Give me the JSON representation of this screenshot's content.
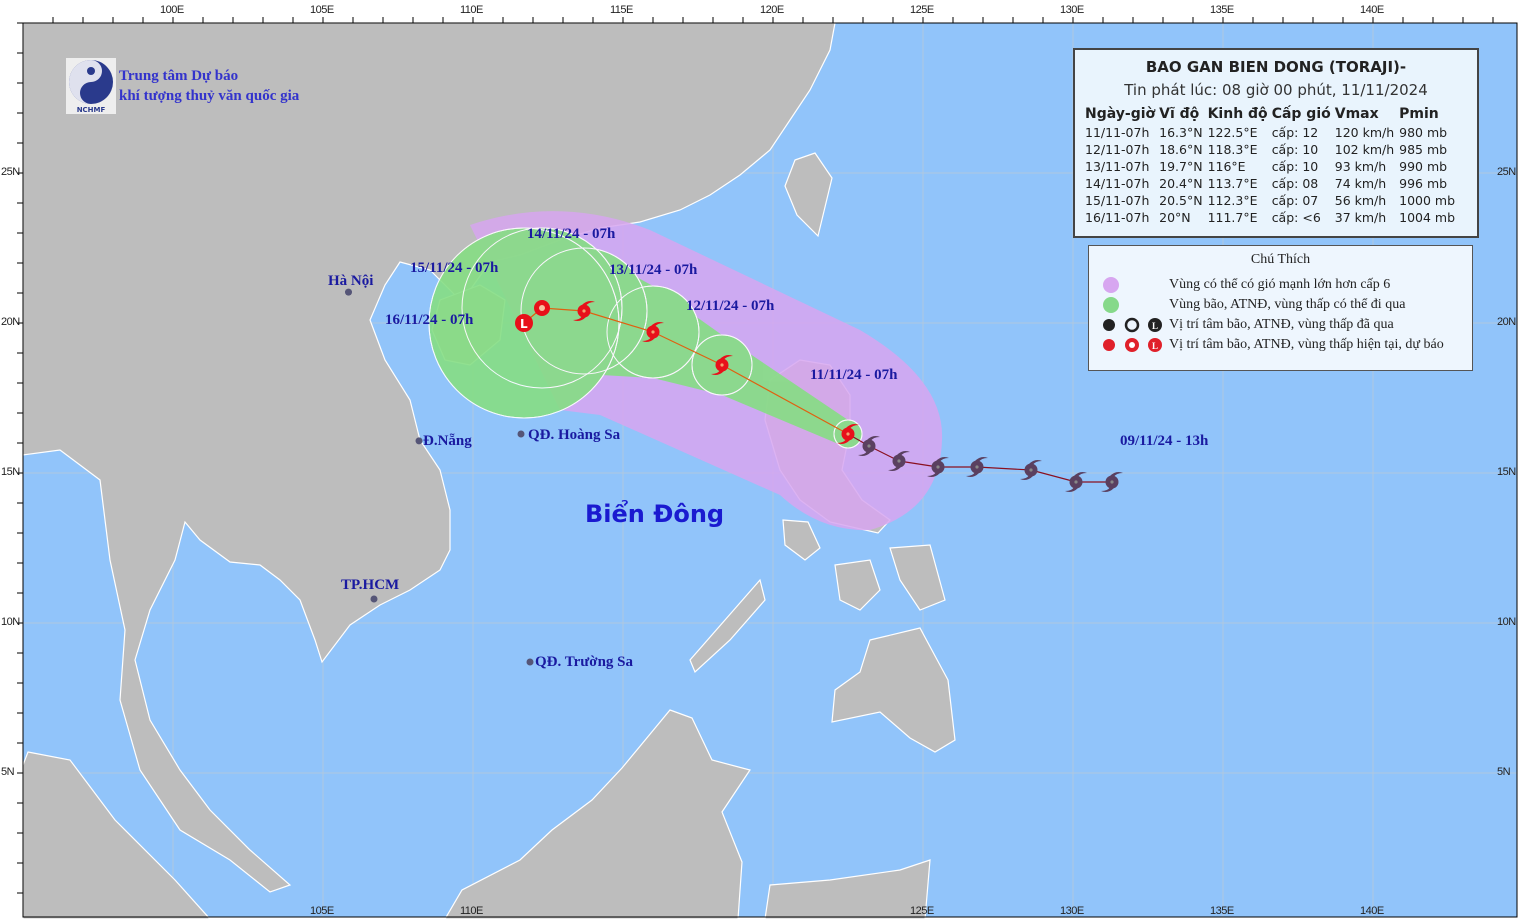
{
  "header": {
    "org_line1": "Trung tâm Dự báo",
    "org_line2": "khí tượng thuỷ văn quốc gia",
    "logo_text": "NCHMF"
  },
  "info": {
    "title": "BAO GAN BIEN DONG (TORAJI)-",
    "issued": "Tin phát lúc: 08 giờ 00 phút, 11/11/2024",
    "columns": [
      "Ngày-giờ",
      "Vĩ độ",
      "Kinh độ",
      "Cấp gió",
      "Vmax",
      "Pmin"
    ],
    "rows": [
      [
        "11/11-07h",
        "16.3°N",
        "122.5°E",
        "cấp: 12",
        "120 km/h",
        "980 mb"
      ],
      [
        "12/11-07h",
        "18.6°N",
        "118.3°E",
        "cấp: 10",
        "102 km/h",
        "985 mb"
      ],
      [
        "13/11-07h",
        "19.7°N",
        "116°E",
        "cấp: 10",
        "93 km/h",
        "990 mb"
      ],
      [
        "14/11-07h",
        "20.4°N",
        "113.7°E",
        "cấp: 08",
        "74 km/h",
        "996 mb"
      ],
      [
        "15/11-07h",
        "20.5°N",
        "112.3°E",
        "cấp: 07",
        "56 km/h",
        "1000 mb"
      ],
      [
        "16/11-07h",
        "20°N",
        "111.7°E",
        "cấp: <6",
        "37 km/h",
        "1004 mb"
      ]
    ]
  },
  "legend": {
    "title": "Chú Thích",
    "items": [
      {
        "label": "Vùng có thể có gió mạnh lớn hơn cấp 6",
        "color": "#d7a6f0"
      },
      {
        "label": "Vùng bão, ATNĐ, vùng thấp có thể đi qua",
        "color": "#86d98a"
      },
      {
        "label": "Vị trí tâm bão, ATNĐ, vùng thấp đã qua",
        "color": "#222222"
      },
      {
        "label": "Vị trí tâm bão, ATNĐ, vùng thấp hiện tại, dự báo",
        "color": "#e0202a"
      }
    ]
  },
  "axes": {
    "lon_top": [
      "100E",
      "105E",
      "110E",
      "115E",
      "120E",
      "125E",
      "130E",
      "135E",
      "140E"
    ],
    "lon_bottom": [
      "105E",
      "110E",
      "125E",
      "130E",
      "135E",
      "140E"
    ],
    "lat": [
      "25N",
      "20N",
      "15N",
      "10N",
      "5N"
    ]
  },
  "labels": {
    "forecast": [
      "11/11/24 - 07h",
      "12/11/24 - 07h",
      "13/11/24 - 07h",
      "14/11/24 - 07h",
      "15/11/24 - 07h",
      "16/11/24 - 07h"
    ],
    "start": "09/11/24 - 13h",
    "sea": "Biển Đông"
  },
  "cities": [
    {
      "name": "Hà Nội",
      "lon": 105.85,
      "lat": 21.03
    },
    {
      "name": "Đ.Nẵng",
      "lon": 108.2,
      "lat": 16.07
    },
    {
      "name": "QĐ. Hoàng Sa",
      "lon": 111.6,
      "lat": 16.3
    },
    {
      "name": "TP.HCM",
      "lon": 106.7,
      "lat": 10.8
    },
    {
      "name": "QĐ. Trường Sa",
      "lon": 111.9,
      "lat": 8.7
    }
  ],
  "track": {
    "past": [
      [
        131.3,
        14.7
      ],
      [
        130.1,
        14.7
      ],
      [
        128.6,
        15.1
      ],
      [
        126.8,
        15.2
      ],
      [
        125.5,
        15.2
      ],
      [
        124.2,
        15.4
      ],
      [
        123.2,
        15.9
      ]
    ],
    "forecast": [
      {
        "lon": 122.5,
        "lat": 16.3,
        "type": "storm"
      },
      {
        "lon": 118.3,
        "lat": 18.6,
        "type": "storm"
      },
      {
        "lon": 116.0,
        "lat": 19.7,
        "type": "storm"
      },
      {
        "lon": 113.7,
        "lat": 20.4,
        "type": "storm"
      },
      {
        "lon": 112.3,
        "lat": 20.5,
        "type": "depression"
      },
      {
        "lon": 111.7,
        "lat": 20.0,
        "type": "low"
      }
    ]
  },
  "colors": {
    "sea": "#91c4fa",
    "land": "#bdbdbd",
    "cone_wind": "#d7a6f0",
    "cone_track": "#86de84",
    "forecast_icon": "#e8101a",
    "past_icon": "#333333",
    "label": "#1a1aa0"
  }
}
